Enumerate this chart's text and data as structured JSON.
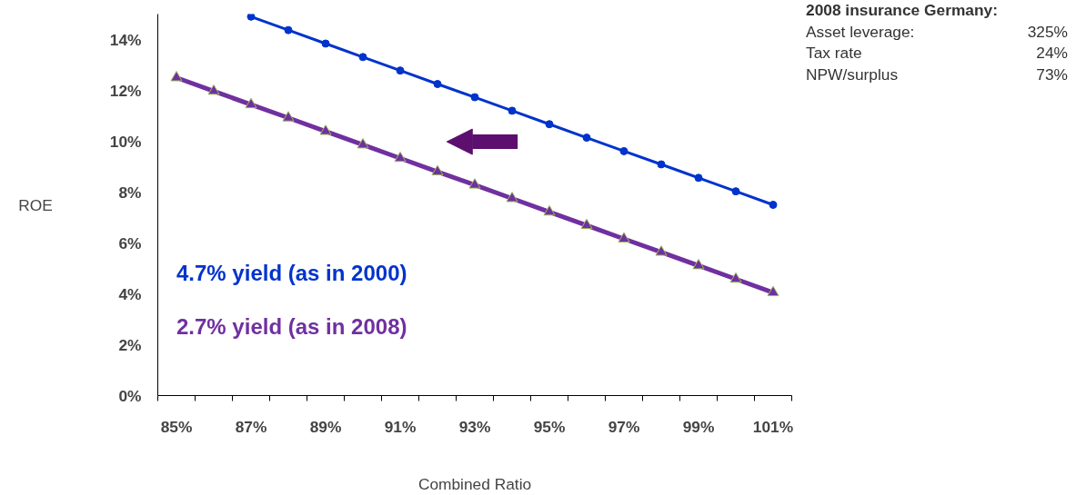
{
  "chart_data": {
    "type": "line",
    "xlabel": "Combined Ratio",
    "ylabel": "ROE",
    "categories": [
      "85%",
      null,
      "87%",
      null,
      "89%",
      null,
      "91%",
      null,
      "93%",
      null,
      "95%",
      null,
      "97%",
      null,
      "99%",
      null,
      "101%"
    ],
    "ylim": [
      0,
      15
    ],
    "yticks": [
      {
        "value": 0,
        "label": "0%"
      },
      {
        "value": 2,
        "label": "2%"
      },
      {
        "value": 4,
        "label": "4%"
      },
      {
        "value": 6,
        "label": "6%"
      },
      {
        "value": 8,
        "label": "8%"
      },
      {
        "value": 10,
        "label": "10%"
      },
      {
        "value": 12,
        "label": "12%"
      },
      {
        "value": 14,
        "label": "14%"
      }
    ],
    "series": [
      {
        "name": "4.7%  yield (as in 2000)",
        "color": "#0033cc",
        "marker": "circle",
        "values": [
          null,
          null,
          14.9,
          14.37,
          13.84,
          13.31,
          12.78,
          12.25,
          11.73,
          11.2,
          10.67,
          10.14,
          9.61,
          9.09,
          8.56,
          8.03,
          7.5
        ]
      },
      {
        "name": "2.7% yield (as in 2008)",
        "color": "#7030a0",
        "marker": "triangle",
        "values": [
          12.5,
          11.97,
          11.44,
          10.92,
          10.39,
          9.86,
          9.33,
          8.8,
          8.28,
          7.75,
          7.22,
          6.69,
          6.16,
          5.64,
          5.11,
          4.58,
          4.05
        ]
      }
    ],
    "annotations": [
      "2008 insurance Germany:",
      "Asset leverage: 325%",
      "Tax rate 24%",
      "NPW/surplus 73%"
    ],
    "grid": false
  }
}
